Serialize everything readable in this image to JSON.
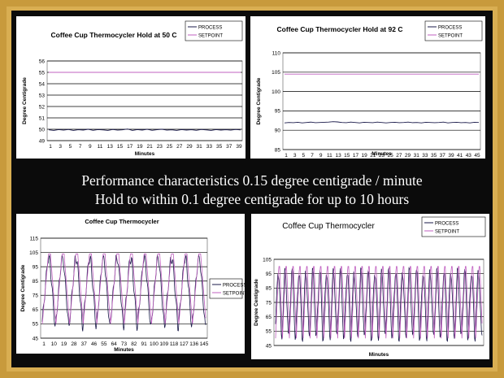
{
  "slide": {
    "caption_line1": "Performance characteristics 0.15 degree centigrade / minute",
    "caption_line2": "Hold to within 0.1 degree centigrade for up to 10 hours"
  },
  "chart_data": [
    {
      "type": "line",
      "title": "Coffee Cup Thermocycler Hold at 50 C",
      "xlabel": "Minutes",
      "ylabel": "Degree Centigrade",
      "ylim": [
        49,
        56
      ],
      "yticks": [
        49,
        50,
        51,
        52,
        53,
        54,
        55,
        56
      ],
      "xticks": [
        "1",
        "3",
        "5",
        "7",
        "9",
        "11",
        "13",
        "15",
        "17",
        "19",
        "21",
        "23",
        "25",
        "27",
        "29",
        "31",
        "33",
        "35",
        "37",
        "39"
      ],
      "grid": true,
      "legend": "top-right",
      "legend_entries": [
        "PROCESS",
        "SETPOINT"
      ],
      "series": [
        {
          "name": "PROCESS",
          "color": "#1a1a4a",
          "values": [
            49.95,
            49.9,
            49.97,
            49.92,
            49.98,
            49.9,
            49.96,
            49.93,
            50.0,
            49.91,
            49.97,
            49.94,
            49.9,
            49.98,
            49.92,
            49.95,
            50.02,
            49.9,
            49.97,
            49.93,
            49.99,
            49.91,
            49.96,
            50.0,
            49.92,
            49.95,
            49.9,
            49.97,
            49.93,
            49.96,
            49.91,
            49.98,
            49.94,
            49.9,
            49.97,
            49.93,
            49.96,
            49.92,
            49.98,
            49.94
          ]
        },
        {
          "name": "SETPOINT",
          "color": "#c060c0",
          "values": [
            55,
            55,
            55,
            55,
            55,
            55,
            55,
            55,
            55,
            55,
            55,
            55,
            55,
            55,
            55,
            55,
            55,
            55,
            55,
            55,
            55,
            55,
            55,
            55,
            55,
            55,
            55,
            55,
            55,
            55,
            55,
            55,
            55,
            55,
            55,
            55,
            55,
            55,
            55,
            55
          ]
        }
      ]
    },
    {
      "type": "line",
      "title": "Coffee Cup Thermocycler Hold at 92 C",
      "xlabel": "Minutes",
      "ylabel": "Degree Centigrade",
      "ylim": [
        85,
        110
      ],
      "yticks": [
        85,
        90,
        95,
        100,
        105,
        110
      ],
      "xticks": [
        "1",
        "3",
        "5",
        "7",
        "9",
        "11",
        "13",
        "15",
        "17",
        "19",
        "21",
        "23",
        "25",
        "27",
        "29",
        "31",
        "33",
        "35",
        "37",
        "39",
        "41",
        "43",
        "45"
      ],
      "grid": true,
      "legend": "top-right",
      "legend_entries": [
        "PROCESS",
        "SETPOINT"
      ],
      "series": [
        {
          "name": "PROCESS",
          "color": "#1a1a4a",
          "values": [
            91.9,
            92.0,
            91.95,
            92.05,
            91.9,
            92.0,
            92.1,
            91.95,
            92.0,
            92.05,
            92.1,
            92.2,
            92.15,
            92.0,
            91.95,
            92.1,
            92.0,
            91.9,
            92.05,
            92.0,
            91.95,
            92.1,
            92.0,
            91.9,
            92.0,
            92.05,
            91.95,
            92.0,
            92.1,
            91.95,
            92.0,
            91.9,
            92.05,
            92.0,
            91.95,
            92.0,
            92.1,
            91.9,
            92.0,
            92.05,
            91.95,
            92.0,
            91.9,
            92.05,
            92.0
          ]
        },
        {
          "name": "SETPOINT",
          "color": "#c060c0",
          "values": [
            104.5,
            104.5,
            104.5,
            104.5,
            104.5,
            104.5,
            104.5,
            104.5,
            104.5,
            104.5,
            104.5,
            104.5,
            104.5,
            104.5,
            104.5,
            104.5,
            104.5,
            104.5,
            104.5,
            104.5,
            104.5,
            104.5,
            104.5,
            104.5,
            104.5,
            104.5,
            104.5,
            104.5,
            104.5,
            104.5,
            104.5,
            104.5,
            104.5,
            104.5,
            104.5,
            104.5,
            104.5,
            104.5,
            104.5,
            104.5,
            104.5,
            104.5,
            104.5,
            104.5,
            104.5
          ]
        }
      ]
    },
    {
      "type": "line",
      "title": "Coffee Cup Thermocycler",
      "xlabel": "Minutes",
      "ylabel": "Degree Centigrade",
      "ylim": [
        45,
        115
      ],
      "yticks": [
        45,
        55,
        65,
        75,
        85,
        95,
        105,
        115
      ],
      "xticks": [
        "1",
        "10",
        "19",
        "28",
        "37",
        "46",
        "55",
        "64",
        "73",
        "82",
        "91",
        "100",
        "109",
        "118",
        "127",
        "136",
        "145"
      ],
      "xrange": [
        1,
        145
      ],
      "grid": true,
      "legend": "right",
      "legend_entries": [
        "PROCESS",
        "SETPOINT"
      ],
      "cycle": {
        "count": 12,
        "min": 55,
        "max": 104
      },
      "series": [
        {
          "name": "PROCESS",
          "color": "#1a1a4a"
        },
        {
          "name": "SETPOINT",
          "color": "#c060c0"
        }
      ]
    },
    {
      "type": "line",
      "title": "Coffee Cup Thermocycler",
      "xlabel": "Minutes",
      "ylabel": "Degree Centigrade",
      "ylim": [
        45,
        105
      ],
      "yticks": [
        45,
        55,
        65,
        75,
        85,
        95,
        105
      ],
      "grid": true,
      "legend": "top-right",
      "legend_entries": [
        "PROCESS",
        "SETPOINT"
      ],
      "cycle": {
        "count": 30,
        "min": 50,
        "max": 100
      },
      "series": [
        {
          "name": "PROCESS",
          "color": "#1a1a4a"
        },
        {
          "name": "SETPOINT",
          "color": "#c060c0"
        }
      ]
    }
  ]
}
